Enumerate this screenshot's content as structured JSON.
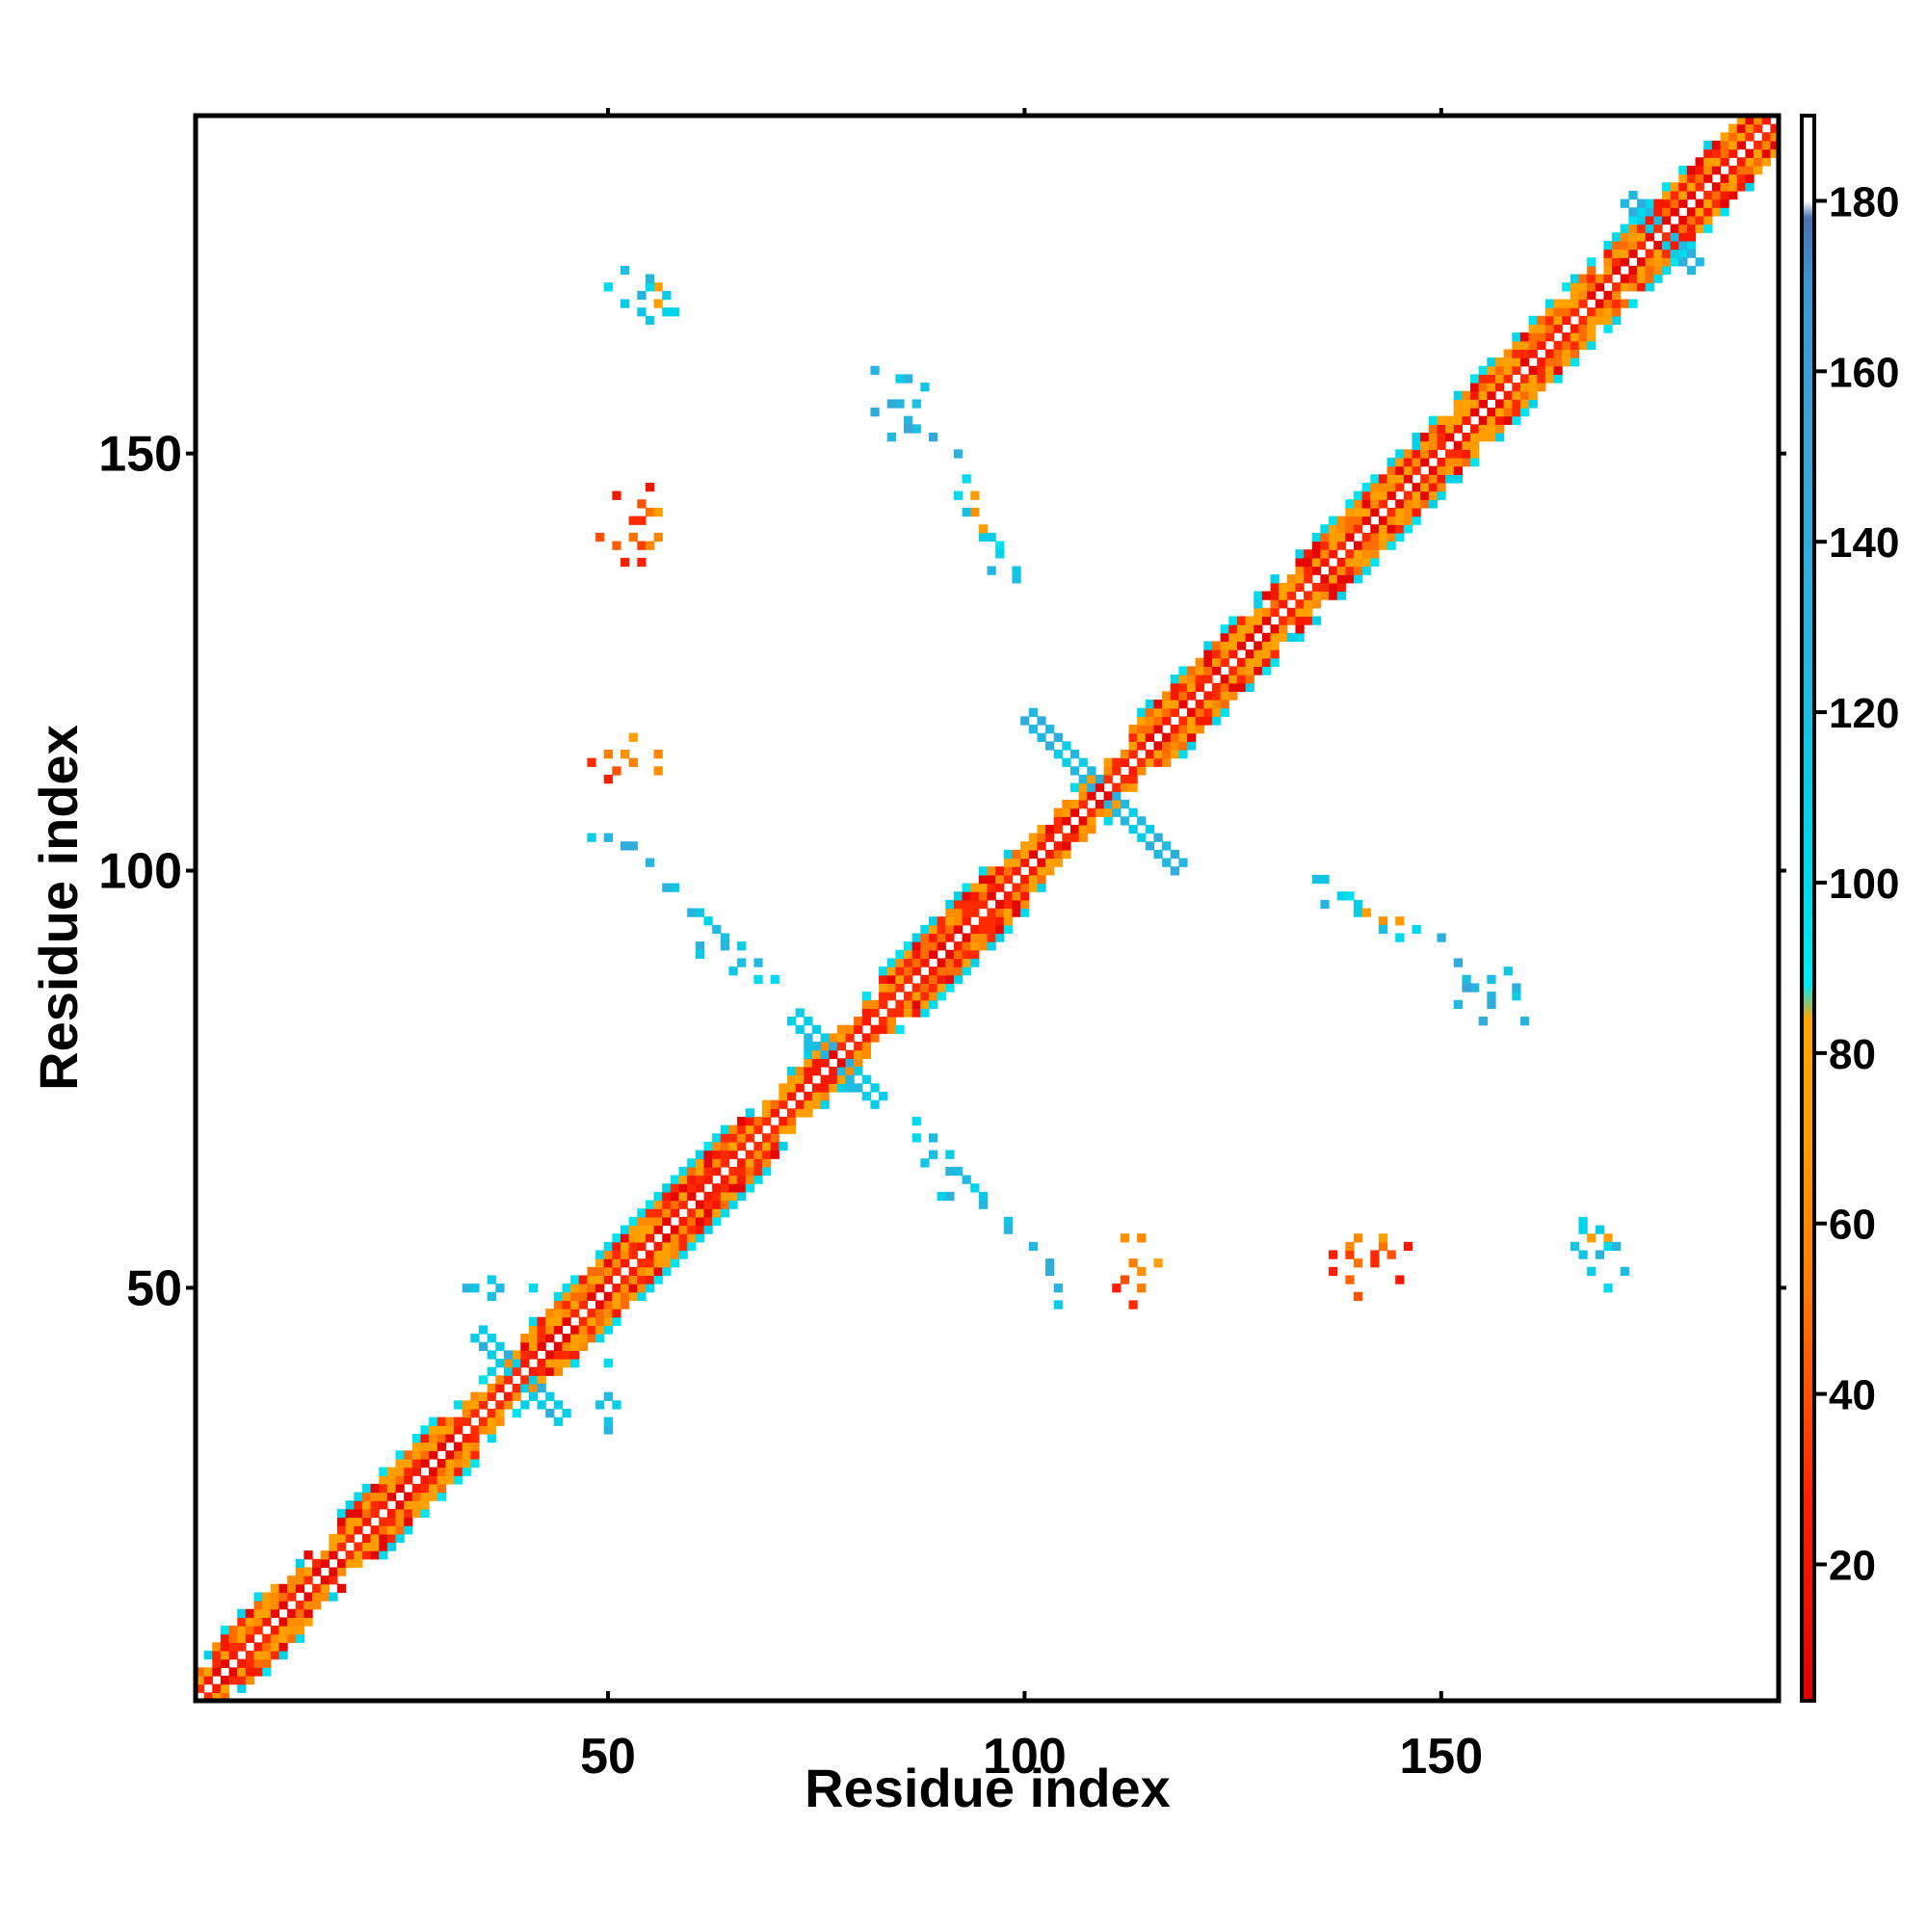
{
  "chart_data": {
    "type": "heatmap",
    "title": "",
    "xlabel": "Residue index",
    "ylabel": "Residue index",
    "xlim": [
      1,
      190
    ],
    "ylim": [
      1,
      190
    ],
    "x_ticks": [
      50,
      100,
      150
    ],
    "y_ticks": [
      50,
      100,
      150
    ],
    "x_tick_labels": [
      "50",
      "100",
      "150"
    ],
    "y_tick_labels": [
      "50",
      "100",
      "150"
    ],
    "grid": false,
    "colorbar": {
      "placement": "right",
      "range": [
        4,
        190
      ],
      "tick_values": [
        20,
        40,
        60,
        80,
        100,
        120,
        140,
        160,
        180
      ],
      "tick_labels": [
        "20",
        "40",
        "60",
        "80",
        "100",
        "120",
        "140",
        "160",
        "180"
      ],
      "stops": [
        {
          "value": 4,
          "color": "#e00000"
        },
        {
          "value": 28,
          "color": "#ff2200"
        },
        {
          "value": 38,
          "color": "#ff4a00"
        },
        {
          "value": 52,
          "color": "#ff7a00"
        },
        {
          "value": 70,
          "color": "#ff9a00"
        },
        {
          "value": 84,
          "color": "#ffa500"
        },
        {
          "value": 88,
          "color": "#00e8f4"
        },
        {
          "value": 105,
          "color": "#00d4e8"
        },
        {
          "value": 125,
          "color": "#22b8e0"
        },
        {
          "value": 150,
          "color": "#3aa4d8"
        },
        {
          "value": 170,
          "color": "#3a98d4"
        },
        {
          "value": 178,
          "color": "#4a70b0"
        },
        {
          "value": 180,
          "color": "#ffffff"
        },
        {
          "value": 190,
          "color": "#ffffff"
        }
      ]
    },
    "colors": {
      "helix_red": "#e81e00",
      "helix_orange": "#ff8c00",
      "strand_cyan": "#14dcec",
      "loop_blue": "#37a6d6"
    },
    "regions": {
      "helices": [
        [
          3,
          14
        ],
        [
          18,
          34
        ],
        [
          40,
          52
        ],
        [
          45,
          70
        ],
        [
          83,
          100
        ],
        [
          113,
          130
        ],
        [
          133,
          150
        ],
        [
          152,
          168
        ],
        [
          170,
          190
        ]
      ],
      "kinks": [
        [
          38,
          40
        ],
        [
          76,
          78
        ],
        [
          108,
          110
        ],
        [
          175,
          178
        ]
      ],
      "loops": [
        [
          70,
          82
        ],
        [
          100,
          113
        ]
      ]
    },
    "contacts": [
      {
        "x": 52,
        "y": 168,
        "v": 110
      },
      {
        "x": 54,
        "y": 169,
        "v": 130
      },
      {
        "x": 55,
        "y": 166,
        "v": 115
      },
      {
        "x": 57,
        "y": 167,
        "v": 105
      },
      {
        "x": 56,
        "y": 170,
        "v": 75
      },
      {
        "x": 50,
        "y": 170,
        "v": 100
      },
      {
        "x": 53,
        "y": 142,
        "v": 30
      },
      {
        "x": 54,
        "y": 139,
        "v": 35
      },
      {
        "x": 55,
        "y": 143,
        "v": 50
      },
      {
        "x": 52,
        "y": 137,
        "v": 25
      },
      {
        "x": 51,
        "y": 145,
        "v": 20
      },
      {
        "x": 49,
        "y": 140,
        "v": 40
      },
      {
        "x": 56,
        "y": 140,
        "v": 60
      },
      {
        "x": 82,
        "y": 155,
        "v": 140
      },
      {
        "x": 85,
        "y": 156,
        "v": 130
      },
      {
        "x": 87,
        "y": 153,
        "v": 120
      },
      {
        "x": 89,
        "y": 152,
        "v": 150
      },
      {
        "x": 84,
        "y": 152,
        "v": 125
      },
      {
        "x": 86,
        "y": 159,
        "v": 135
      },
      {
        "x": 88,
        "y": 158,
        "v": 115
      },
      {
        "x": 92,
        "y": 145,
        "v": 100
      },
      {
        "x": 94,
        "y": 143,
        "v": 65
      },
      {
        "x": 95,
        "y": 140,
        "v": 110
      },
      {
        "x": 97,
        "y": 139,
        "v": 95
      },
      {
        "x": 96,
        "y": 136,
        "v": 130
      },
      {
        "x": 99,
        "y": 135,
        "v": 120
      },
      {
        "x": 93,
        "y": 143,
        "v": 105
      },
      {
        "x": 48,
        "y": 113,
        "v": 30
      },
      {
        "x": 50,
        "y": 114,
        "v": 55
      },
      {
        "x": 52,
        "y": 114,
        "v": 65
      },
      {
        "x": 53,
        "y": 116,
        "v": 75
      },
      {
        "x": 48,
        "y": 104,
        "v": 110
      },
      {
        "x": 52,
        "y": 103,
        "v": 140
      },
      {
        "x": 55,
        "y": 101,
        "v": 120
      },
      {
        "x": 58,
        "y": 98,
        "v": 115
      },
      {
        "x": 60,
        "y": 95,
        "v": 130
      },
      {
        "x": 62,
        "y": 94,
        "v": 105
      },
      {
        "x": 64,
        "y": 92,
        "v": 120
      },
      {
        "x": 66,
        "y": 91,
        "v": 110
      },
      {
        "x": 68,
        "y": 89,
        "v": 125
      },
      {
        "x": 70,
        "y": 87,
        "v": 100
      },
      {
        "x": 61,
        "y": 91,
        "v": 135
      },
      {
        "x": 65,
        "y": 88,
        "v": 115
      },
      {
        "x": 36,
        "y": 51,
        "v": 110
      },
      {
        "x": 37,
        "y": 50,
        "v": 125
      },
      {
        "x": 41,
        "y": 50,
        "v": 100
      },
      {
        "x": 49,
        "y": 36,
        "v": 120
      },
      {
        "x": 50,
        "y": 33,
        "v": 130
      },
      {
        "x": 50,
        "y": 34,
        "v": 115
      },
      {
        "x": 79,
        "y": 74,
        "v": 120
      },
      {
        "x": 83,
        "y": 73,
        "v": 110
      },
      {
        "x": 87,
        "y": 68,
        "v": 100
      },
      {
        "x": 89,
        "y": 66,
        "v": 120
      },
      {
        "x": 91,
        "y": 64,
        "v": 130
      },
      {
        "x": 93,
        "y": 63,
        "v": 125
      },
      {
        "x": 90,
        "y": 61,
        "v": 110
      },
      {
        "x": 95,
        "y": 61,
        "v": 115
      },
      {
        "x": 98,
        "y": 57,
        "v": 130
      },
      {
        "x": 101,
        "y": 55,
        "v": 125
      },
      {
        "x": 103,
        "y": 53,
        "v": 140
      },
      {
        "x": 104,
        "y": 50,
        "v": 130
      },
      {
        "x": 112,
        "y": 56,
        "v": 65
      },
      {
        "x": 113,
        "y": 53,
        "v": 55
      },
      {
        "x": 112,
        "y": 51,
        "v": 40
      },
      {
        "x": 111,
        "y": 50,
        "v": 25
      },
      {
        "x": 114,
        "y": 56,
        "v": 60
      },
      {
        "x": 136,
        "y": 99,
        "v": 115
      },
      {
        "x": 138,
        "y": 97,
        "v": 105
      },
      {
        "x": 140,
        "y": 96,
        "v": 110
      },
      {
        "x": 141,
        "y": 95,
        "v": 75
      },
      {
        "x": 143,
        "y": 93,
        "v": 120
      },
      {
        "x": 145,
        "y": 94,
        "v": 70
      },
      {
        "x": 147,
        "y": 93,
        "v": 100
      },
      {
        "x": 150,
        "y": 92,
        "v": 135
      },
      {
        "x": 152,
        "y": 89,
        "v": 145
      },
      {
        "x": 154,
        "y": 86,
        "v": 130
      },
      {
        "x": 156,
        "y": 87,
        "v": 120
      },
      {
        "x": 156,
        "y": 84,
        "v": 140
      },
      {
        "x": 159,
        "y": 85,
        "v": 110
      },
      {
        "x": 160,
        "y": 82,
        "v": 130
      },
      {
        "x": 153,
        "y": 86,
        "v": 150
      },
      {
        "x": 137,
        "y": 54,
        "v": 25
      },
      {
        "x": 139,
        "y": 55,
        "v": 60
      },
      {
        "x": 140,
        "y": 53,
        "v": 50
      },
      {
        "x": 142,
        "y": 54,
        "v": 30
      },
      {
        "x": 143,
        "y": 56,
        "v": 75
      },
      {
        "x": 144,
        "y": 54,
        "v": 40
      },
      {
        "x": 139,
        "y": 51,
        "v": 45
      },
      {
        "x": 146,
        "y": 55,
        "v": 20
      },
      {
        "x": 167,
        "y": 58,
        "v": 105
      },
      {
        "x": 169,
        "y": 57,
        "v": 110
      },
      {
        "x": 170,
        "y": 55,
        "v": 100
      },
      {
        "x": 171,
        "y": 55,
        "v": 130
      },
      {
        "x": 168,
        "y": 56,
        "v": 75
      },
      {
        "x": 172,
        "y": 52,
        "v": 120
      },
      {
        "x": 167,
        "y": 54,
        "v": 115
      }
    ]
  }
}
